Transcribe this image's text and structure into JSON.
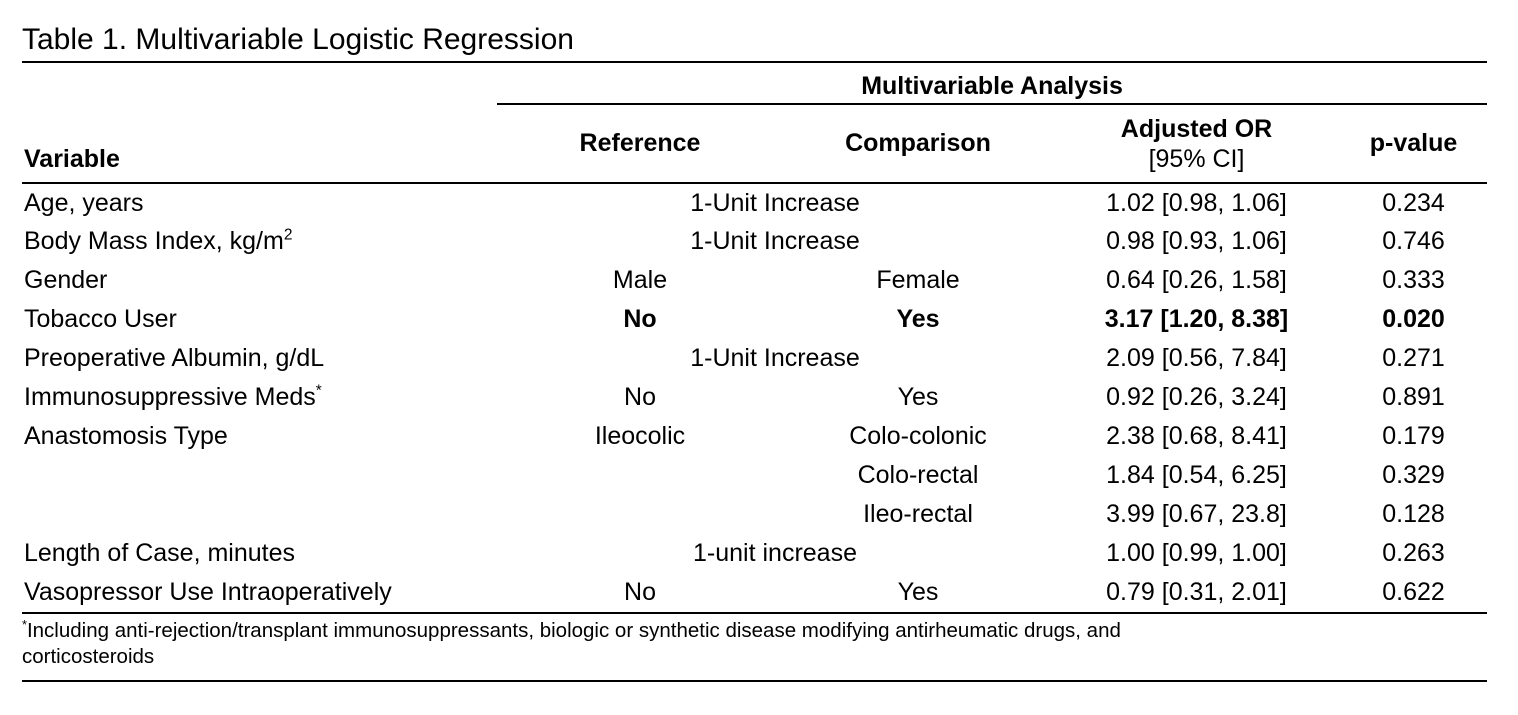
{
  "page": {
    "title": "Table 1. Multivariable Logistic Regression"
  },
  "table": {
    "group_header": "Multivariable Analysis",
    "columns": {
      "variable": "Variable",
      "reference": "Reference",
      "comparison": "Comparison",
      "adjusted_or_line1": "Adjusted OR",
      "adjusted_or_line2": "[95% CI]",
      "p_value": "p-value"
    },
    "rows": [
      {
        "variable": "Age, years",
        "span": "1-Unit Increase",
        "adjusted_or": "1.02 [0.98, 1.06]",
        "p_value": "0.234"
      },
      {
        "variable": "Body Mass Index, kg/m",
        "variable_sup": "2",
        "span": "1-Unit Increase",
        "adjusted_or": "0.98 [0.93, 1.06]",
        "p_value": "0.746"
      },
      {
        "variable": "Gender",
        "reference": "Male",
        "comparison": "Female",
        "adjusted_or": "0.64 [0.26, 1.58]",
        "p_value": "0.333"
      },
      {
        "variable": "Tobacco User",
        "reference": "No",
        "comparison": "Yes",
        "adjusted_or": "3.17 [1.20, 8.38]",
        "p_value": "0.020",
        "bold": true
      },
      {
        "variable": "Preoperative Albumin, g/dL",
        "span": "1-Unit Increase",
        "adjusted_or": "2.09 [0.56, 7.84]",
        "p_value": "0.271"
      },
      {
        "variable": "Immunosuppressive Meds",
        "variable_sup": "*",
        "reference": "No",
        "comparison": "Yes",
        "adjusted_or": "0.92 [0.26, 3.24]",
        "p_value": "0.891"
      },
      {
        "variable": "Anastomosis Type",
        "reference": "Ileocolic",
        "comparison": "Colo-colonic",
        "adjusted_or": "2.38 [0.68, 8.41]",
        "p_value": "0.179"
      },
      {
        "variable": "",
        "reference": "",
        "comparison": "Colo-rectal",
        "adjusted_or": "1.84 [0.54, 6.25]",
        "p_value": "0.329"
      },
      {
        "variable": "",
        "reference": "",
        "comparison": "Ileo-rectal",
        "adjusted_or": "3.99 [0.67, 23.8]",
        "p_value": "0.128"
      },
      {
        "variable": "Length of Case, minutes",
        "span": "1-unit increase",
        "adjusted_or": "1.00 [0.99, 1.00]",
        "p_value": "0.263"
      },
      {
        "variable": "Vasopressor Use Intraoperatively",
        "reference": "No",
        "comparison": "Yes",
        "adjusted_or": "0.79 [0.31, 2.01]",
        "p_value": "0.622"
      }
    ]
  },
  "footnote": {
    "marker": "*",
    "line1": "Including anti-rejection/transplant immunosuppressants, biologic or synthetic disease modifying antirheumatic drugs, and",
    "line2": "corticosteroids"
  },
  "colors": {
    "text": "#000000",
    "background": "#ffffff",
    "rule": "#000000"
  }
}
